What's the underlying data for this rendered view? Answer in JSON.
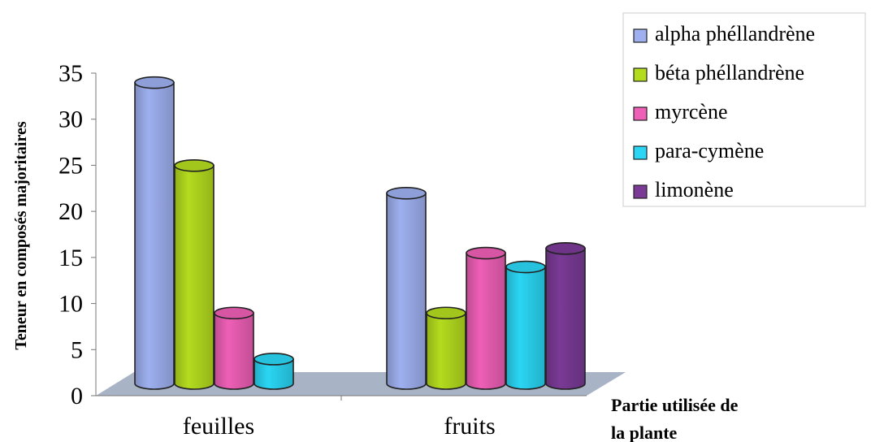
{
  "chart_data": {
    "type": "bar",
    "categories": [
      "feuilles",
      "fruits"
    ],
    "series": [
      {
        "name": "alpha phéllandrène",
        "values": [
          33,
          21
        ],
        "color": "#9eb0f0"
      },
      {
        "name": "béta phéllandrène",
        "values": [
          24,
          8
        ],
        "color": "#b4dc1e"
      },
      {
        "name": "myrcène",
        "values": [
          8,
          14.5
        ],
        "color": "#ee5fb6"
      },
      {
        "name": "para-cymène",
        "values": [
          3,
          13
        ],
        "color": "#2ad6f4"
      },
      {
        "name": "limonène",
        "values": [
          0,
          15
        ],
        "color": "#7a3a96"
      }
    ],
    "ylabel": "Teneur en composés majoritaires",
    "xlabel_line1": "Partie utilisée de",
    "xlabel_line2": "la plante",
    "ylim": [
      0,
      35
    ],
    "yticks": [
      "0",
      "5",
      "10",
      "15",
      "20",
      "25",
      "30",
      "35"
    ],
    "legend": "top-right",
    "grid": false,
    "floor_color": "#a9b3c6"
  }
}
